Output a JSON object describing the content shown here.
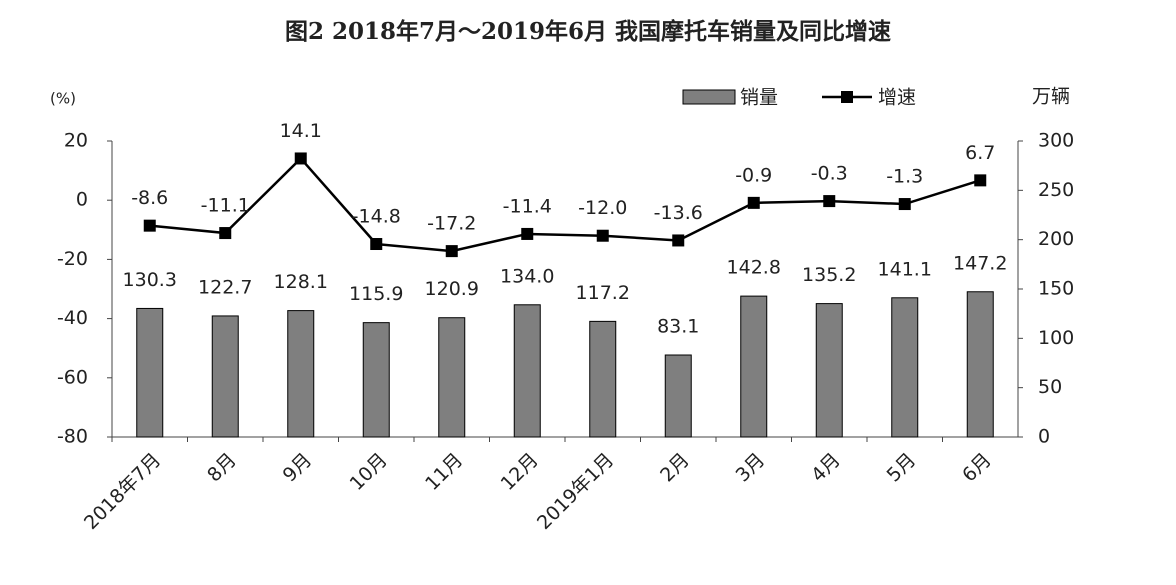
{
  "chart_data": {
    "type": "bar-line",
    "title": "图2 2018年7月～2019年6月 我国摩托车销量及同比增速",
    "ylabel": "(%)",
    "y2label": "万辆",
    "categories": [
      "2018年7月",
      "8月",
      "9月",
      "10月",
      "11月",
      "12月",
      "2019年1月",
      "2月",
      "3月",
      "4月",
      "5月",
      "6月"
    ],
    "series": [
      {
        "name": "销量",
        "type": "bar",
        "axis": "y2",
        "color": "#7f7f7f",
        "values": [
          130.3,
          122.7,
          128.1,
          115.9,
          120.9,
          134.0,
          117.2,
          83.1,
          142.8,
          135.2,
          141.1,
          147.2
        ],
        "value_labels": [
          "130.3",
          "122.7",
          "128.1",
          "115.9",
          "120.9",
          "134.0",
          "117.2",
          "83.1",
          "142.8",
          "135.2",
          "141.1",
          "147.2"
        ]
      },
      {
        "name": "增速",
        "type": "line",
        "color": "#000000",
        "values": [
          -8.6,
          -11.1,
          14.1,
          -14.8,
          -17.2,
          -11.4,
          -12.0,
          -13.6,
          -0.9,
          -0.3,
          -1.3,
          6.7
        ],
        "value_labels": [
          "-8.6",
          "-11.1",
          "14.1",
          "-14.8",
          "-17.2",
          "-11.4",
          "-12.0",
          "-13.6",
          "-0.9",
          "-0.3",
          "-1.3",
          "6.7"
        ]
      }
    ],
    "ylim": [
      -80,
      20
    ],
    "yticks": [
      -80,
      -60,
      -40,
      -20,
      0,
      20
    ],
    "y2lim": [
      0,
      300
    ],
    "y2ticks": [
      0,
      50,
      100,
      150,
      200,
      250,
      300
    ],
    "grid": false,
    "legend": "top-right"
  }
}
